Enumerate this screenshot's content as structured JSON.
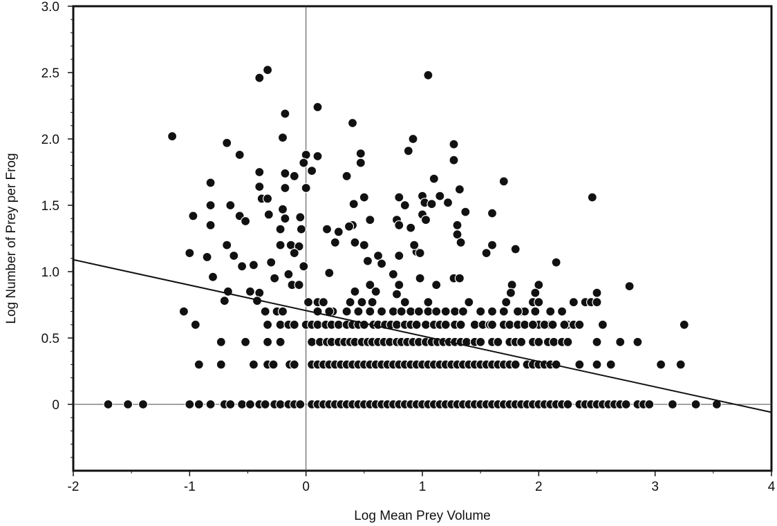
{
  "chart_data": {
    "type": "scatter",
    "title": "",
    "xlabel": "Log Mean Prey Volume",
    "ylabel": "Log Number of Prey per Frog",
    "xlim": [
      -2,
      4
    ],
    "ylim": [
      -0.5,
      3.0
    ],
    "x_ticks": [
      -2,
      -1,
      0,
      1,
      2,
      3,
      4
    ],
    "x_tick_labels": [
      "-2",
      "-1",
      "0",
      "1",
      "2",
      "3",
      "4"
    ],
    "y_ticks": [
      0,
      0.5,
      1.0,
      1.5,
      2.0,
      2.5,
      3.0
    ],
    "y_tick_labels": [
      "0",
      "0.5",
      "1.0",
      "1.5",
      "2.0",
      "2.5",
      "3.0"
    ],
    "grid": false,
    "reference_lines": [
      {
        "axis": "x",
        "value": 0
      },
      {
        "axis": "y",
        "value": 0
      }
    ],
    "regression_line": {
      "x": [
        -2,
        4
      ],
      "y": [
        1.09,
        -0.06
      ]
    },
    "marker_color": "#111111",
    "points": [
      [
        -1.15,
        2.02
      ],
      [
        -0.4,
        2.46
      ],
      [
        -0.33,
        2.52
      ],
      [
        0.1,
        2.24
      ],
      [
        1.05,
        2.48
      ],
      [
        -0.18,
        2.19
      ],
      [
        -0.2,
        2.01
      ],
      [
        0.0,
        1.88
      ],
      [
        0.1,
        1.87
      ],
      [
        -0.02,
        1.82
      ],
      [
        0.05,
        1.76
      ],
      [
        -0.1,
        1.72
      ],
      [
        -0.18,
        1.74
      ],
      [
        -0.68,
        1.97
      ],
      [
        -0.57,
        1.88
      ],
      [
        -0.4,
        1.75
      ],
      [
        -0.38,
        1.55
      ],
      [
        -0.33,
        1.55
      ],
      [
        -0.4,
        1.64
      ],
      [
        -0.18,
        1.63
      ],
      [
        -0.82,
        1.67
      ],
      [
        -0.82,
        1.5
      ],
      [
        -0.65,
        1.5
      ],
      [
        -0.57,
        1.42
      ],
      [
        -0.52,
        1.38
      ],
      [
        -0.32,
        1.43
      ],
      [
        -0.2,
        1.47
      ],
      [
        -0.18,
        1.4
      ],
      [
        -0.22,
        1.32
      ],
      [
        -0.05,
        1.41
      ],
      [
        -0.04,
        1.32
      ],
      [
        -0.13,
        1.2
      ],
      [
        -0.06,
        1.19
      ],
      [
        -0.1,
        1.14
      ],
      [
        -0.22,
        1.2
      ],
      [
        -0.3,
        1.07
      ],
      [
        -0.45,
        1.05
      ],
      [
        -0.55,
        1.04
      ],
      [
        -0.62,
        1.12
      ],
      [
        -0.68,
        1.2
      ],
      [
        -0.82,
        1.35
      ],
      [
        -0.85,
        1.11
      ],
      [
        -0.8,
        0.96
      ],
      [
        -0.67,
        0.85
      ],
      [
        -0.7,
        0.78
      ],
      [
        -0.48,
        0.85
      ],
      [
        -0.4,
        0.84
      ],
      [
        -0.42,
        0.78
      ],
      [
        -0.35,
        0.7
      ],
      [
        -0.33,
        0.6
      ],
      [
        -0.33,
        0.47
      ],
      [
        -0.33,
        0.3
      ],
      [
        -0.27,
        0.95
      ],
      [
        -0.15,
        0.98
      ],
      [
        -0.12,
        0.9
      ],
      [
        -0.06,
        0.9
      ],
      [
        -0.02,
        1.04
      ],
      [
        0.0,
        1.63
      ],
      [
        -0.97,
        1.42
      ],
      [
        -1.0,
        1.14
      ],
      [
        -0.95,
        0.6
      ],
      [
        -1.05,
        0.7
      ],
      [
        -0.92,
        0.3
      ],
      [
        -0.73,
        0.3
      ],
      [
        -0.73,
        0.47
      ],
      [
        -0.52,
        0.47
      ],
      [
        -0.45,
        0.3
      ],
      [
        -0.28,
        0.3
      ],
      [
        -0.22,
        0.47
      ],
      [
        -0.25,
        0.7
      ],
      [
        -0.22,
        0.6
      ],
      [
        -0.15,
        0.6
      ],
      [
        -0.1,
        0.6
      ],
      [
        -0.2,
        0.7
      ],
      [
        -0.14,
        0.3
      ],
      [
        -0.1,
        0.3
      ],
      [
        0.02,
        0.77
      ],
      [
        0.1,
        0.77
      ],
      [
        0.15,
        0.77
      ],
      [
        0.23,
        0.7
      ],
      [
        0.2,
        0.99
      ],
      [
        0.25,
        1.22
      ],
      [
        0.28,
        1.3
      ],
      [
        0.18,
        1.32
      ],
      [
        0.35,
        1.72
      ],
      [
        0.4,
        2.12
      ],
      [
        0.41,
        1.51
      ],
      [
        0.4,
        1.35
      ],
      [
        0.37,
        1.34
      ],
      [
        0.42,
        1.22
      ],
      [
        0.47,
        1.89
      ],
      [
        0.47,
        1.82
      ],
      [
        0.5,
        1.56
      ],
      [
        0.5,
        1.2
      ],
      [
        0.55,
        1.39
      ],
      [
        0.53,
        1.08
      ],
      [
        0.38,
        0.77
      ],
      [
        0.42,
        0.85
      ],
      [
        0.48,
        0.77
      ],
      [
        0.55,
        0.9
      ],
      [
        0.6,
        0.85
      ],
      [
        0.57,
        0.77
      ],
      [
        0.62,
        1.12
      ],
      [
        0.65,
        1.06
      ],
      [
        0.75,
        0.98
      ],
      [
        0.78,
        1.39
      ],
      [
        0.8,
        1.35
      ],
      [
        0.8,
        1.12
      ],
      [
        0.8,
        1.56
      ],
      [
        0.85,
        1.5
      ],
      [
        0.88,
        1.91
      ],
      [
        0.92,
        2.0
      ],
      [
        0.9,
        1.33
      ],
      [
        0.95,
        1.15
      ],
      [
        0.93,
        1.2
      ],
      [
        0.98,
        1.14
      ],
      [
        1.0,
        1.43
      ],
      [
        1.0,
        1.57
      ],
      [
        1.02,
        1.52
      ],
      [
        1.03,
        1.39
      ],
      [
        1.08,
        1.51
      ],
      [
        1.1,
        1.7
      ],
      [
        1.15,
        1.57
      ],
      [
        1.22,
        1.52
      ],
      [
        1.27,
        1.96
      ],
      [
        1.27,
        1.84
      ],
      [
        1.32,
        1.62
      ],
      [
        1.3,
        1.35
      ],
      [
        1.3,
        1.28
      ],
      [
        1.33,
        1.22
      ],
      [
        1.37,
        1.45
      ],
      [
        1.27,
        0.95
      ],
      [
        1.32,
        0.95
      ],
      [
        1.4,
        0.77
      ],
      [
        1.12,
        0.9
      ],
      [
        1.05,
        0.77
      ],
      [
        0.98,
        0.95
      ],
      [
        0.85,
        0.77
      ],
      [
        0.78,
        0.83
      ],
      [
        0.8,
        0.9
      ],
      [
        1.55,
        1.14
      ],
      [
        1.6,
        1.2
      ],
      [
        1.6,
        1.44
      ],
      [
        1.7,
        1.68
      ],
      [
        1.8,
        1.17
      ],
      [
        1.77,
        0.9
      ],
      [
        1.76,
        0.84
      ],
      [
        1.72,
        0.77
      ],
      [
        1.95,
        0.77
      ],
      [
        2.0,
        0.9
      ],
      [
        2.0,
        0.77
      ],
      [
        1.97,
        0.84
      ],
      [
        2.15,
        1.07
      ],
      [
        2.3,
        0.77
      ],
      [
        2.4,
        0.77
      ],
      [
        2.45,
        0.77
      ],
      [
        2.5,
        0.84
      ],
      [
        2.5,
        0.77
      ],
      [
        2.46,
        1.56
      ],
      [
        2.78,
        0.89
      ],
      [
        2.55,
        0.6
      ],
      [
        2.0,
        0.6
      ],
      [
        2.1,
        0.6
      ],
      [
        2.25,
        0.6
      ],
      [
        2.3,
        0.6
      ],
      [
        0.1,
        0.7
      ],
      [
        0.2,
        0.7
      ],
      [
        0.35,
        0.7
      ],
      [
        0.45,
        0.7
      ],
      [
        0.55,
        0.7
      ],
      [
        0.65,
        0.7
      ],
      [
        0.75,
        0.7
      ],
      [
        0.82,
        0.7
      ],
      [
        0.9,
        0.7
      ],
      [
        0.97,
        0.7
      ],
      [
        1.05,
        0.7
      ],
      [
        1.12,
        0.7
      ],
      [
        1.2,
        0.7
      ],
      [
        1.28,
        0.7
      ],
      [
        1.35,
        0.7
      ],
      [
        1.5,
        0.7
      ],
      [
        1.6,
        0.7
      ],
      [
        1.7,
        0.7
      ],
      [
        1.85,
        0.7
      ],
      [
        1.88,
        0.7
      ],
      [
        1.97,
        0.7
      ],
      [
        2.1,
        0.7
      ],
      [
        2.2,
        0.7
      ],
      [
        1.82,
        0.7
      ],
      [
        0.0,
        0.6
      ],
      [
        0.05,
        0.6
      ],
      [
        0.1,
        0.6
      ],
      [
        0.17,
        0.6
      ],
      [
        0.22,
        0.6
      ],
      [
        0.28,
        0.6
      ],
      [
        0.35,
        0.6
      ],
      [
        0.4,
        0.6
      ],
      [
        0.45,
        0.6
      ],
      [
        0.5,
        0.6
      ],
      [
        0.58,
        0.6
      ],
      [
        0.62,
        0.6
      ],
      [
        0.68,
        0.6
      ],
      [
        0.73,
        0.6
      ],
      [
        0.78,
        0.6
      ],
      [
        0.85,
        0.6
      ],
      [
        0.9,
        0.6
      ],
      [
        0.95,
        0.6
      ],
      [
        1.03,
        0.6
      ],
      [
        1.1,
        0.6
      ],
      [
        1.15,
        0.6
      ],
      [
        1.2,
        0.6
      ],
      [
        1.28,
        0.6
      ],
      [
        1.33,
        0.6
      ],
      [
        1.45,
        0.6
      ],
      [
        1.52,
        0.6
      ],
      [
        1.58,
        0.6
      ],
      [
        1.6,
        0.6
      ],
      [
        1.7,
        0.6
      ],
      [
        1.75,
        0.6
      ],
      [
        1.82,
        0.6
      ],
      [
        1.88,
        0.6
      ],
      [
        1.95,
        0.6
      ],
      [
        2.05,
        0.6
      ],
      [
        2.12,
        0.6
      ],
      [
        2.22,
        0.6
      ],
      [
        2.35,
        0.6
      ],
      [
        3.25,
        0.6
      ],
      [
        0.05,
        0.47
      ],
      [
        0.12,
        0.47
      ],
      [
        0.18,
        0.47
      ],
      [
        0.22,
        0.47
      ],
      [
        0.28,
        0.47
      ],
      [
        0.33,
        0.47
      ],
      [
        0.38,
        0.47
      ],
      [
        0.42,
        0.47
      ],
      [
        0.48,
        0.47
      ],
      [
        0.53,
        0.47
      ],
      [
        0.57,
        0.47
      ],
      [
        0.62,
        0.47
      ],
      [
        0.67,
        0.47
      ],
      [
        0.72,
        0.47
      ],
      [
        0.78,
        0.47
      ],
      [
        0.82,
        0.47
      ],
      [
        0.87,
        0.47
      ],
      [
        0.92,
        0.47
      ],
      [
        0.97,
        0.47
      ],
      [
        1.03,
        0.47
      ],
      [
        1.08,
        0.47
      ],
      [
        1.13,
        0.47
      ],
      [
        1.18,
        0.47
      ],
      [
        1.23,
        0.47
      ],
      [
        1.28,
        0.47
      ],
      [
        1.33,
        0.47
      ],
      [
        1.38,
        0.47
      ],
      [
        1.45,
        0.47
      ],
      [
        1.5,
        0.47
      ],
      [
        1.6,
        0.47
      ],
      [
        1.65,
        0.47
      ],
      [
        1.75,
        0.47
      ],
      [
        1.8,
        0.47
      ],
      [
        1.85,
        0.47
      ],
      [
        1.95,
        0.47
      ],
      [
        2.0,
        0.47
      ],
      [
        2.08,
        0.47
      ],
      [
        2.13,
        0.47
      ],
      [
        2.2,
        0.47
      ],
      [
        2.25,
        0.47
      ],
      [
        2.5,
        0.47
      ],
      [
        2.7,
        0.47
      ],
      [
        2.85,
        0.47
      ],
      [
        0.05,
        0.3
      ],
      [
        0.1,
        0.3
      ],
      [
        0.15,
        0.3
      ],
      [
        0.2,
        0.3
      ],
      [
        0.25,
        0.3
      ],
      [
        0.3,
        0.3
      ],
      [
        0.35,
        0.3
      ],
      [
        0.4,
        0.3
      ],
      [
        0.45,
        0.3
      ],
      [
        0.5,
        0.3
      ],
      [
        0.55,
        0.3
      ],
      [
        0.6,
        0.3
      ],
      [
        0.65,
        0.3
      ],
      [
        0.7,
        0.3
      ],
      [
        0.75,
        0.3
      ],
      [
        0.8,
        0.3
      ],
      [
        0.85,
        0.3
      ],
      [
        0.9,
        0.3
      ],
      [
        0.95,
        0.3
      ],
      [
        1.0,
        0.3
      ],
      [
        1.05,
        0.3
      ],
      [
        1.1,
        0.3
      ],
      [
        1.15,
        0.3
      ],
      [
        1.2,
        0.3
      ],
      [
        1.25,
        0.3
      ],
      [
        1.3,
        0.3
      ],
      [
        1.35,
        0.3
      ],
      [
        1.4,
        0.3
      ],
      [
        1.45,
        0.3
      ],
      [
        1.5,
        0.3
      ],
      [
        1.55,
        0.3
      ],
      [
        1.6,
        0.3
      ],
      [
        1.65,
        0.3
      ],
      [
        1.7,
        0.3
      ],
      [
        1.75,
        0.3
      ],
      [
        1.8,
        0.3
      ],
      [
        1.9,
        0.3
      ],
      [
        1.95,
        0.3
      ],
      [
        2.0,
        0.3
      ],
      [
        2.05,
        0.3
      ],
      [
        2.1,
        0.3
      ],
      [
        2.15,
        0.3
      ],
      [
        2.35,
        0.3
      ],
      [
        2.5,
        0.3
      ],
      [
        2.62,
        0.3
      ],
      [
        3.05,
        0.3
      ],
      [
        3.22,
        0.3
      ],
      [
        -1.7,
        0
      ],
      [
        -1.53,
        0
      ],
      [
        -1.4,
        0
      ],
      [
        -1.0,
        0
      ],
      [
        -0.92,
        0
      ],
      [
        -0.82,
        0
      ],
      [
        -0.7,
        0
      ],
      [
        -0.65,
        0
      ],
      [
        -0.55,
        0
      ],
      [
        -0.48,
        0
      ],
      [
        -0.4,
        0
      ],
      [
        -0.35,
        0
      ],
      [
        -0.27,
        0
      ],
      [
        -0.22,
        0
      ],
      [
        -0.15,
        0
      ],
      [
        -0.1,
        0
      ],
      [
        -0.05,
        0
      ],
      [
        0.05,
        0
      ],
      [
        0.1,
        0
      ],
      [
        0.15,
        0
      ],
      [
        0.2,
        0
      ],
      [
        0.25,
        0
      ],
      [
        0.3,
        0
      ],
      [
        0.35,
        0
      ],
      [
        0.4,
        0
      ],
      [
        0.45,
        0
      ],
      [
        0.5,
        0
      ],
      [
        0.55,
        0
      ],
      [
        0.6,
        0
      ],
      [
        0.65,
        0
      ],
      [
        0.7,
        0
      ],
      [
        0.75,
        0
      ],
      [
        0.8,
        0
      ],
      [
        0.85,
        0
      ],
      [
        0.9,
        0
      ],
      [
        0.95,
        0
      ],
      [
        1.0,
        0
      ],
      [
        1.05,
        0
      ],
      [
        1.1,
        0
      ],
      [
        1.15,
        0
      ],
      [
        1.2,
        0
      ],
      [
        1.25,
        0
      ],
      [
        1.3,
        0
      ],
      [
        1.35,
        0
      ],
      [
        1.4,
        0
      ],
      [
        1.45,
        0
      ],
      [
        1.5,
        0
      ],
      [
        1.55,
        0
      ],
      [
        1.6,
        0
      ],
      [
        1.65,
        0
      ],
      [
        1.7,
        0
      ],
      [
        1.75,
        0
      ],
      [
        1.8,
        0
      ],
      [
        1.85,
        0
      ],
      [
        1.9,
        0
      ],
      [
        1.95,
        0
      ],
      [
        2.0,
        0
      ],
      [
        2.05,
        0
      ],
      [
        2.1,
        0
      ],
      [
        2.15,
        0
      ],
      [
        2.2,
        0
      ],
      [
        2.25,
        0
      ],
      [
        2.35,
        0
      ],
      [
        2.4,
        0
      ],
      [
        2.45,
        0
      ],
      [
        2.5,
        0
      ],
      [
        2.55,
        0
      ],
      [
        2.6,
        0
      ],
      [
        2.65,
        0
      ],
      [
        2.7,
        0
      ],
      [
        2.75,
        0
      ],
      [
        2.85,
        0
      ],
      [
        2.9,
        0
      ],
      [
        2.95,
        0
      ],
      [
        3.15,
        0
      ],
      [
        3.35,
        0
      ],
      [
        3.53,
        0
      ]
    ]
  }
}
